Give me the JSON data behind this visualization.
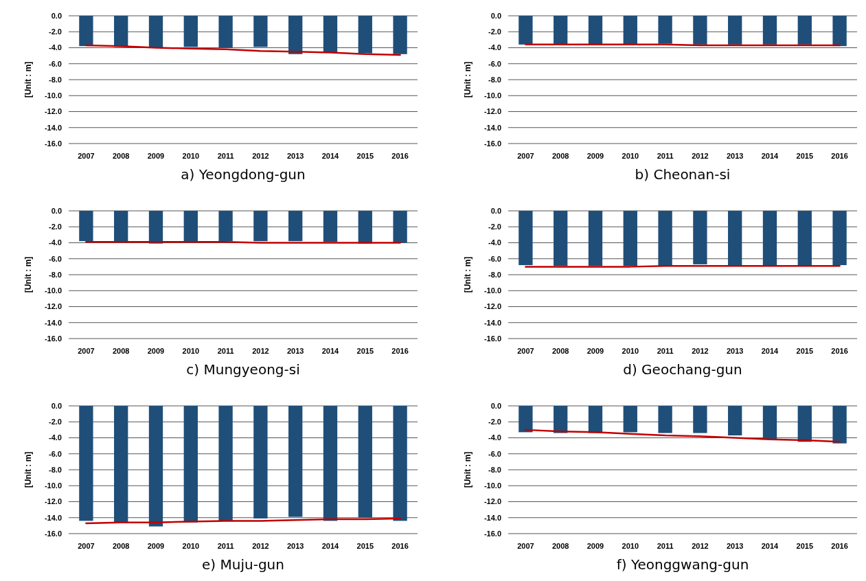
{
  "chart_data": [
    {
      "type": "bar",
      "title": "a) Yeongdong-gun",
      "ylabel": "[Unit : m]",
      "categories": [
        "2007",
        "2008",
        "2009",
        "2010",
        "2011",
        "2012",
        "2013",
        "2014",
        "2015",
        "2016"
      ],
      "series": [
        {
          "color": "#1f4e79",
          "values": [
            -3.8,
            -3.9,
            -4.0,
            -3.9,
            -4.0,
            -3.9,
            -4.8,
            -4.6,
            -4.7,
            -4.8
          ]
        },
        {
          "type": "line",
          "color": "#c00000",
          "values": [
            -3.7,
            -3.8,
            -4.0,
            -4.1,
            -4.2,
            -4.4,
            -4.5,
            -4.6,
            -4.8,
            -4.9
          ]
        }
      ],
      "ylim": [
        -16,
        0
      ],
      "yticks": [
        {
          "value": 0,
          "label": "0.0"
        },
        {
          "value": -2,
          "label": "-2.0"
        },
        {
          "value": -4,
          "label": "-4.0"
        },
        {
          "value": -6,
          "label": "-6.0"
        },
        {
          "value": -8,
          "label": "-8.0"
        },
        {
          "value": -10,
          "label": "-10.0"
        },
        {
          "value": -12,
          "label": "-12.0"
        },
        {
          "value": -14,
          "label": "-14.0"
        },
        {
          "value": -16,
          "label": "-16.0"
        }
      ],
      "grid": "y"
    },
    {
      "type": "bar",
      "title": "b) Cheonan-si",
      "ylabel": "[Unit : m]",
      "categories": [
        "2007",
        "2008",
        "2009",
        "2010",
        "2011",
        "2012",
        "2013",
        "2014",
        "2015",
        "2016"
      ],
      "series": [
        {
          "color": "#1f4e79",
          "values": [
            -3.6,
            -3.6,
            -3.6,
            -3.6,
            -3.5,
            -3.6,
            -3.6,
            -3.6,
            -3.6,
            -3.8
          ]
        },
        {
          "type": "line",
          "color": "#c00000",
          "values": [
            -3.6,
            -3.6,
            -3.6,
            -3.6,
            -3.6,
            -3.7,
            -3.7,
            -3.7,
            -3.7,
            -3.7
          ]
        }
      ],
      "ylim": [
        -16,
        0
      ],
      "yticks": [
        {
          "value": 0,
          "label": "0.0"
        },
        {
          "value": -2,
          "label": "-2.0"
        },
        {
          "value": -4,
          "label": "-4.0"
        },
        {
          "value": -6,
          "label": "-6.0"
        },
        {
          "value": -8,
          "label": "-8.0"
        },
        {
          "value": -10,
          "label": "-10.0"
        },
        {
          "value": -12,
          "label": "-12.0"
        },
        {
          "value": -14,
          "label": "-14.0"
        },
        {
          "value": -16,
          "label": "-16.0"
        }
      ],
      "grid": "y"
    },
    {
      "type": "bar",
      "title": "c) Mungyeong-si",
      "ylabel": "[Unit : m]",
      "categories": [
        "2007",
        "2008",
        "2009",
        "2010",
        "2011",
        "2012",
        "2013",
        "2014",
        "2015",
        "2016"
      ],
      "series": [
        {
          "color": "#1f4e79",
          "values": [
            -3.8,
            -3.9,
            -4.1,
            -3.9,
            -3.8,
            -3.8,
            -3.8,
            -3.9,
            -4.1,
            -4.0
          ]
        },
        {
          "type": "line",
          "color": "#c00000",
          "values": [
            -3.9,
            -3.9,
            -3.9,
            -3.9,
            -3.9,
            -4.0,
            -4.0,
            -4.0,
            -4.0,
            -4.0
          ]
        }
      ],
      "ylim": [
        -16,
        0
      ],
      "yticks": [
        {
          "value": 0,
          "label": "0.0"
        },
        {
          "value": -2,
          "label": "-2.0"
        },
        {
          "value": -4,
          "label": "-4.0"
        },
        {
          "value": -6,
          "label": "-6.0"
        },
        {
          "value": -8,
          "label": "-8.0"
        },
        {
          "value": -10,
          "label": "-10.0"
        },
        {
          "value": -12,
          "label": "-12.0"
        },
        {
          "value": -14,
          "label": "-14.0"
        },
        {
          "value": -16,
          "label": "-16.0"
        }
      ],
      "grid": "y"
    },
    {
      "type": "bar",
      "title": "d) Geochang-gun",
      "ylabel": "[Unit : m]",
      "categories": [
        "2007",
        "2008",
        "2009",
        "2010",
        "2011",
        "2012",
        "2013",
        "2014",
        "2015",
        "2016"
      ],
      "series": [
        {
          "color": "#1f4e79",
          "values": [
            -6.8,
            -6.9,
            -6.9,
            -6.9,
            -6.9,
            -6.7,
            -6.9,
            -6.9,
            -6.9,
            -6.8
          ]
        },
        {
          "type": "line",
          "color": "#c00000",
          "values": [
            -7.0,
            -7.0,
            -7.0,
            -7.0,
            -6.9,
            -6.9,
            -6.9,
            -6.9,
            -6.9,
            -6.9
          ]
        }
      ],
      "ylim": [
        -16,
        0
      ],
      "yticks": [
        {
          "value": 0,
          "label": "0.0"
        },
        {
          "value": -2,
          "label": "-2.0"
        },
        {
          "value": -4,
          "label": "-4.0"
        },
        {
          "value": -6,
          "label": "-6.0"
        },
        {
          "value": -8,
          "label": "-8.0"
        },
        {
          "value": -10,
          "label": "-10.0"
        },
        {
          "value": -12,
          "label": "-12.0"
        },
        {
          "value": -14,
          "label": "-14.0"
        },
        {
          "value": -16,
          "label": "-16.0"
        }
      ],
      "grid": "y"
    },
    {
      "type": "bar",
      "title": "e) Muju-gun",
      "ylabel": "[Unit : m]",
      "categories": [
        "2007",
        "2008",
        "2009",
        "2010",
        "2011",
        "2012",
        "2013",
        "2014",
        "2015",
        "2016"
      ],
      "series": [
        {
          "color": "#1f4e79",
          "values": [
            -14.4,
            -14.6,
            -15.1,
            -14.6,
            -14.4,
            -14.1,
            -13.9,
            -14.4,
            -14.0,
            -14.4
          ]
        },
        {
          "type": "line",
          "color": "#c00000",
          "values": [
            -14.7,
            -14.6,
            -14.6,
            -14.5,
            -14.4,
            -14.4,
            -14.3,
            -14.2,
            -14.2,
            -14.1
          ]
        }
      ],
      "ylim": [
        -16,
        0
      ],
      "yticks": [
        {
          "value": 0,
          "label": "0.0"
        },
        {
          "value": -2,
          "label": "-2.0"
        },
        {
          "value": -4,
          "label": "-4.0"
        },
        {
          "value": -6,
          "label": "-6.0"
        },
        {
          "value": -8,
          "label": "-8.0"
        },
        {
          "value": -10,
          "label": "-10.0"
        },
        {
          "value": -12,
          "label": "-12.0"
        },
        {
          "value": -14,
          "label": "-14.0"
        },
        {
          "value": -16,
          "label": "-16.0"
        }
      ],
      "grid": "y"
    },
    {
      "type": "bar",
      "title": "f) Yeonggwang-gun",
      "ylabel": "[Unit : m]",
      "categories": [
        "2007",
        "2008",
        "2009",
        "2010",
        "2011",
        "2012",
        "2013",
        "2014",
        "2015",
        "2016"
      ],
      "series": [
        {
          "color": "#1f4e79",
          "values": [
            -3.3,
            -3.4,
            -3.4,
            -3.3,
            -3.4,
            -3.4,
            -3.7,
            -4.2,
            -4.5,
            -4.7
          ]
        },
        {
          "type": "line",
          "color": "#c00000",
          "values": [
            -3.0,
            -3.2,
            -3.3,
            -3.5,
            -3.7,
            -3.8,
            -4.0,
            -4.2,
            -4.3,
            -4.5
          ]
        }
      ],
      "ylim": [
        -16,
        0
      ],
      "yticks": [
        {
          "value": 0,
          "label": "0.0"
        },
        {
          "value": -2,
          "label": "-2.0"
        },
        {
          "value": -4,
          "label": "-4.0"
        },
        {
          "value": -6,
          "label": "-6.0"
        },
        {
          "value": -8,
          "label": "-8.0"
        },
        {
          "value": -10,
          "label": "-10.0"
        },
        {
          "value": -12,
          "label": "-12.0"
        },
        {
          "value": -14,
          "label": "-14.0"
        },
        {
          "value": -16,
          "label": "-16.0"
        }
      ],
      "grid": "y"
    }
  ]
}
